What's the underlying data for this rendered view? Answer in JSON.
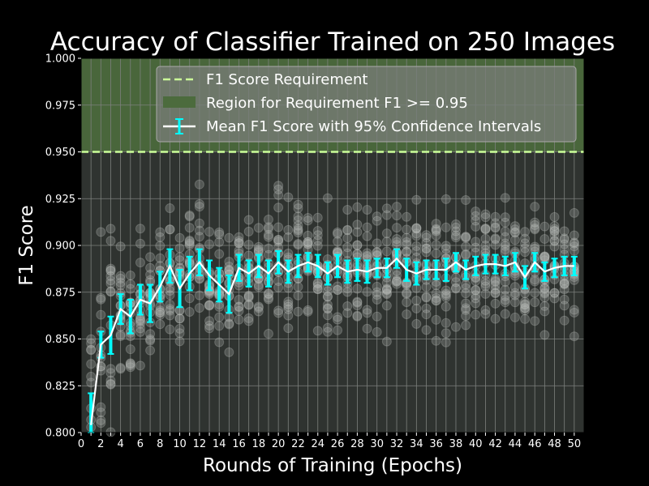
{
  "chart_data": {
    "type": "line",
    "title": "Accuracy of Classifier Trained on 250 Images",
    "xlabel": "Rounds of Training (Epochs)",
    "ylabel": "F1 Score",
    "xlim": [
      0,
      51
    ],
    "ylim": [
      0.8,
      1.0
    ],
    "xticks": [
      0,
      1,
      2,
      3,
      4,
      5,
      6,
      7,
      8,
      9,
      10,
      11,
      12,
      13,
      14,
      15,
      16,
      17,
      18,
      19,
      20,
      21,
      22,
      23,
      24,
      25,
      26,
      27,
      28,
      29,
      30,
      31,
      32,
      33,
      34,
      35,
      36,
      37,
      38,
      39,
      40,
      41,
      42,
      43,
      44,
      45,
      46,
      47,
      48,
      49,
      50
    ],
    "xtick_labels": [
      "0",
      "",
      "2",
      "",
      "4",
      "",
      "6",
      "",
      "8",
      "",
      "10",
      "",
      "12",
      "",
      "14",
      "",
      "16",
      "",
      "18",
      "",
      "20",
      "",
      "22",
      "",
      "24",
      "",
      "26",
      "",
      "28",
      "",
      "30",
      "",
      "32",
      "",
      "34",
      "",
      "36",
      "",
      "38",
      "",
      "40",
      "",
      "42",
      "",
      "44",
      "",
      "46",
      "",
      "48",
      "",
      "50"
    ],
    "yticks": [
      0.8,
      0.825,
      0.85,
      0.875,
      0.9,
      0.925,
      0.95,
      0.975,
      1.0
    ],
    "ytick_labels": [
      "0.800",
      "0.825",
      "0.850",
      "0.875",
      "0.900",
      "0.925",
      "0.950",
      "0.975",
      "1.000"
    ],
    "grid": true,
    "legend_position": "top-right",
    "requirement": {
      "value": 0.95,
      "label": "F1 Score Requirement",
      "color": "#ccff99"
    },
    "region": {
      "from": 0.95,
      "to": 1.0,
      "label": "Region for Requirement F1 >= 0.95",
      "color": "#4c6b3d"
    },
    "series": [
      {
        "name": "Mean F1 Score with 95% Confidence Intervals",
        "color": "#ffffff",
        "error_color": "#00ffff",
        "x": [
          1,
          2,
          3,
          4,
          5,
          6,
          7,
          8,
          9,
          10,
          11,
          12,
          13,
          14,
          15,
          16,
          17,
          18,
          19,
          20,
          21,
          22,
          23,
          24,
          25,
          26,
          27,
          28,
          29,
          30,
          31,
          32,
          33,
          34,
          35,
          36,
          37,
          38,
          39,
          40,
          41,
          42,
          43,
          44,
          45,
          46,
          47,
          48,
          49,
          50
        ],
        "y": [
          0.804,
          0.847,
          0.852,
          0.866,
          0.862,
          0.871,
          0.869,
          0.878,
          0.889,
          0.877,
          0.885,
          0.891,
          0.884,
          0.879,
          0.874,
          0.888,
          0.885,
          0.889,
          0.885,
          0.891,
          0.886,
          0.889,
          0.891,
          0.889,
          0.885,
          0.889,
          0.886,
          0.887,
          0.886,
          0.888,
          0.888,
          0.893,
          0.887,
          0.885,
          0.887,
          0.887,
          0.887,
          0.891,
          0.887,
          0.889,
          0.89,
          0.89,
          0.889,
          0.891,
          0.883,
          0.891,
          0.886,
          0.888,
          0.889,
          0.889
        ],
        "err": [
          0.017,
          0.007,
          0.01,
          0.008,
          0.009,
          0.008,
          0.01,
          0.008,
          0.009,
          0.01,
          0.009,
          0.007,
          0.008,
          0.009,
          0.01,
          0.007,
          0.007,
          0.006,
          0.007,
          0.006,
          0.006,
          0.006,
          0.005,
          0.006,
          0.006,
          0.006,
          0.006,
          0.006,
          0.006,
          0.005,
          0.005,
          0.005,
          0.006,
          0.006,
          0.005,
          0.005,
          0.006,
          0.005,
          0.005,
          0.005,
          0.005,
          0.005,
          0.005,
          0.005,
          0.006,
          0.005,
          0.005,
          0.005,
          0.005,
          0.005
        ]
      }
    ]
  }
}
